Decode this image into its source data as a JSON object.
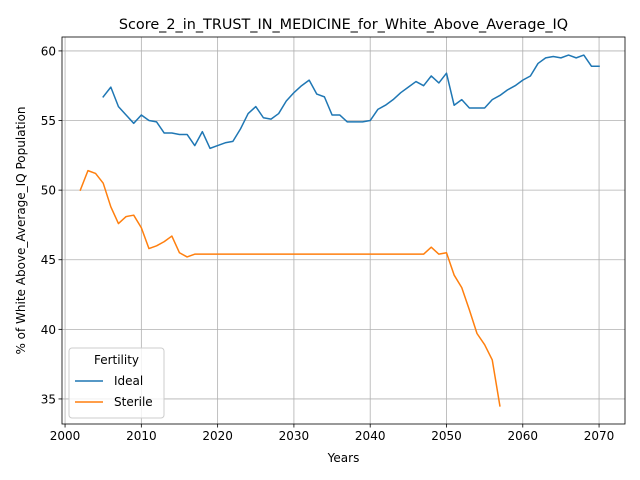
{
  "chart_data": {
    "type": "line",
    "title": "Score_2_in_TRUST_IN_MEDICINE_for_White_Above_Average_IQ",
    "xlabel": "Years",
    "ylabel": "% of White Above_Average_IQ Population",
    "xlim": [
      1999.6,
      2073.4
    ],
    "ylim": [
      33.2,
      61.0
    ],
    "xticks": [
      2000,
      2010,
      2020,
      2030,
      2040,
      2050,
      2060,
      2070
    ],
    "yticks": [
      35,
      40,
      45,
      50,
      55,
      60
    ],
    "grid": true,
    "legend": {
      "title": "Fertility",
      "placement": "lower-left"
    },
    "series": [
      {
        "name": "Ideal",
        "color": "#1f77b4",
        "x": [
          2005,
          2006,
          2007,
          2008,
          2009,
          2010,
          2011,
          2012,
          2013,
          2014,
          2015,
          2016,
          2017,
          2018,
          2019,
          2020,
          2021,
          2022,
          2023,
          2024,
          2025,
          2026,
          2027,
          2028,
          2029,
          2030,
          2031,
          2032,
          2033,
          2034,
          2035,
          2036,
          2037,
          2038,
          2039,
          2040,
          2041,
          2042,
          2043,
          2044,
          2045,
          2046,
          2047,
          2048,
          2049,
          2050,
          2051,
          2052,
          2053,
          2054,
          2055,
          2056,
          2057,
          2058,
          2059,
          2060,
          2061,
          2062,
          2063,
          2064,
          2065,
          2066,
          2067,
          2068,
          2069,
          2070
        ],
        "values": [
          56.7,
          57.4,
          56.0,
          55.4,
          54.8,
          55.4,
          55.0,
          54.9,
          54.1,
          54.1,
          54.0,
          54.0,
          53.2,
          54.2,
          53.0,
          53.2,
          53.4,
          53.5,
          54.4,
          55.5,
          56.0,
          55.2,
          55.1,
          55.5,
          56.4,
          57.0,
          57.5,
          57.9,
          56.9,
          56.7,
          55.4,
          55.4,
          54.9,
          54.9,
          54.9,
          55.0,
          55.8,
          56.1,
          56.5,
          57.0,
          57.4,
          57.8,
          57.5,
          58.2,
          57.7,
          58.4,
          56.1,
          56.5,
          55.9,
          55.9,
          55.9,
          56.5,
          56.8,
          57.2,
          57.5,
          57.9,
          58.2,
          59.1,
          59.5,
          59.6,
          59.5,
          59.7,
          59.5,
          59.7,
          58.9,
          58.9
        ]
      },
      {
        "name": "Sterile",
        "color": "#ff7f0e",
        "x": [
          2002,
          2003,
          2004,
          2005,
          2006,
          2007,
          2008,
          2009,
          2010,
          2011,
          2012,
          2013,
          2014,
          2015,
          2016,
          2017,
          2018,
          2019,
          2020,
          2021,
          2022,
          2023,
          2024,
          2025,
          2026,
          2027,
          2028,
          2029,
          2030,
          2031,
          2032,
          2033,
          2034,
          2035,
          2036,
          2037,
          2038,
          2039,
          2040,
          2041,
          2042,
          2043,
          2044,
          2045,
          2046,
          2047,
          2048,
          2049,
          2050,
          2051,
          2052,
          2053,
          2054,
          2055,
          2056,
          2057
        ],
        "values": [
          50.0,
          51.4,
          51.2,
          50.5,
          48.8,
          47.6,
          48.1,
          48.2,
          47.3,
          45.8,
          46.0,
          46.3,
          46.7,
          45.5,
          45.2,
          45.4,
          45.4,
          45.4,
          45.4,
          45.4,
          45.4,
          45.4,
          45.4,
          45.4,
          45.4,
          45.4,
          45.4,
          45.4,
          45.4,
          45.4,
          45.4,
          45.4,
          45.4,
          45.4,
          45.4,
          45.4,
          45.4,
          45.4,
          45.4,
          45.4,
          45.4,
          45.4,
          45.4,
          45.4,
          45.4,
          45.4,
          45.9,
          45.4,
          45.5,
          43.9,
          43.0,
          41.4,
          39.7,
          38.9,
          37.8,
          34.5
        ]
      }
    ]
  }
}
